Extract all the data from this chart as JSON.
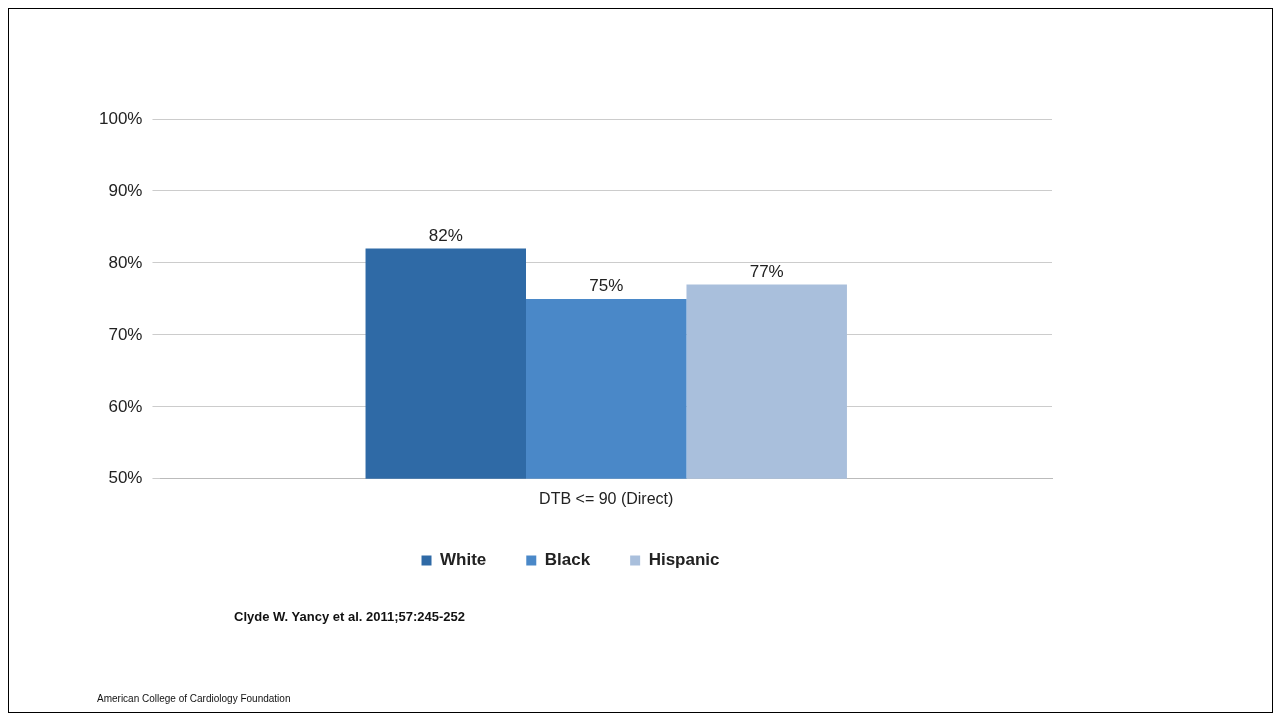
{
  "chart_data": {
    "type": "bar",
    "categories": [
      "DTB <= 90 (Direct)"
    ],
    "series": [
      {
        "name": "White",
        "color": "#2f6aa6",
        "values": [
          82
        ],
        "value_labels": [
          "82%"
        ]
      },
      {
        "name": "Black",
        "color": "#4a88c8",
        "values": [
          75
        ],
        "value_labels": [
          "75%"
        ]
      },
      {
        "name": "Hispanic",
        "color": "#a9bfdc",
        "values": [
          77
        ],
        "value_labels": [
          "77%"
        ]
      }
    ],
    "ylim": [
      50,
      100
    ],
    "yticks": [
      {
        "value": 50,
        "label": "50%"
      },
      {
        "value": 60,
        "label": "60%"
      },
      {
        "value": 70,
        "label": "70%"
      },
      {
        "value": 80,
        "label": "80%"
      },
      {
        "value": 90,
        "label": "90%"
      },
      {
        "value": 100,
        "label": "100%"
      }
    ],
    "grid": "y",
    "legend": "bottom",
    "annotations": [
      "Clyde W. Yancy et al. 2011;57:245-252",
      "American College of Cardiology Foundation"
    ]
  }
}
